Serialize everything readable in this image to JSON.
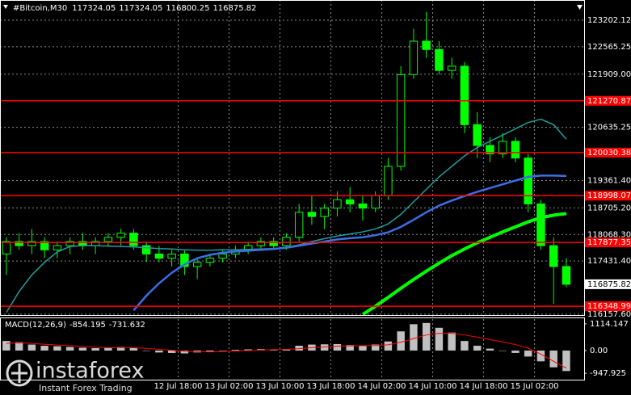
{
  "chart_data": [
    {
      "type": "candlestick",
      "title": "#Bitcoin,M30",
      "quote": [
        117324.05,
        117324.05,
        116800.25,
        116875.82
      ],
      "x": [
        0,
        1,
        2,
        3,
        4,
        5,
        6,
        7,
        8,
        9,
        10,
        11,
        12,
        13,
        14,
        15,
        16,
        17,
        18,
        19,
        20,
        21,
        22,
        23,
        24,
        25,
        26,
        27,
        28,
        29,
        30,
        31,
        32,
        33,
        34,
        35,
        36,
        37,
        38,
        39,
        40,
        41,
        42,
        43,
        44
      ],
      "open": [
        117600,
        117900,
        117800,
        117900,
        117700,
        117800,
        117900,
        117800,
        117900,
        118000,
        118100,
        117800,
        117600,
        117500,
        117600,
        117300,
        117400,
        117500,
        117600,
        117700,
        117800,
        117900,
        117800,
        118000,
        118600,
        118500,
        118700,
        118900,
        118800,
        118700,
        119000,
        119700,
        121900,
        122700,
        122500,
        122000,
        122100,
        120700,
        120200,
        120000,
        120300,
        119900,
        118800,
        117800,
        117300
      ],
      "high": [
        118000,
        118100,
        118200,
        118000,
        117900,
        118000,
        118100,
        118000,
        118100,
        118200,
        118200,
        117900,
        117800,
        117700,
        117700,
        117500,
        117600,
        117700,
        117800,
        117900,
        118000,
        118000,
        118100,
        118800,
        119000,
        118800,
        119100,
        119200,
        119000,
        119100,
        119900,
        122100,
        123000,
        123400,
        122700,
        122300,
        122200,
        121000,
        120400,
        120500,
        120400,
        120000,
        118900,
        118000,
        117500
      ],
      "low": [
        117100,
        117700,
        117600,
        117500,
        117500,
        117600,
        117700,
        117600,
        117800,
        117800,
        117700,
        117400,
        117400,
        117300,
        117100,
        117000,
        117300,
        117400,
        117500,
        117600,
        117700,
        117700,
        117700,
        117900,
        118300,
        118200,
        118500,
        118600,
        118400,
        118600,
        118900,
        119600,
        121800,
        122300,
        121900,
        121800,
        120500,
        119900,
        119800,
        119900,
        119800,
        118600,
        117700,
        116400,
        116800
      ],
      "close": [
        117900,
        117800,
        117900,
        117700,
        117800,
        117900,
        117800,
        117900,
        118000,
        118100,
        117800,
        117600,
        117500,
        117600,
        117300,
        117400,
        117500,
        117600,
        117700,
        117800,
        117900,
        117800,
        118000,
        118600,
        118500,
        118700,
        118900,
        118800,
        118700,
        119000,
        119700,
        121900,
        122700,
        122500,
        122000,
        122100,
        120700,
        120200,
        120000,
        120300,
        119900,
        118800,
        117800,
        117300,
        116875.82
      ],
      "color": "#00ff00",
      "lines": [
        {
          "color": "#1f9e9e",
          "width": 1.5,
          "values": [
            116200,
            116700,
            117100,
            117400,
            117650,
            117780,
            117800,
            117800,
            117790,
            117780,
            117770,
            117750,
            117730,
            117720,
            117700,
            117690,
            117690,
            117700,
            117700,
            117710,
            117720,
            117730,
            117760,
            117820,
            117900,
            117970,
            118030,
            118080,
            118130,
            118200,
            118320,
            118550,
            118850,
            119150,
            119450,
            119700,
            119950,
            120150,
            120300,
            120450,
            120600,
            120750,
            120830,
            120700,
            120350
          ]
        },
        {
          "color": "#3b6fe6",
          "width": 2.5,
          "values": [
            null,
            null,
            null,
            null,
            null,
            null,
            null,
            null,
            null,
            null,
            116250,
            116600,
            116900,
            117150,
            117350,
            117500,
            117580,
            117630,
            117660,
            117680,
            117700,
            117720,
            117750,
            117800,
            117850,
            117900,
            117950,
            117980,
            118000,
            118050,
            118120,
            118250,
            118420,
            118600,
            118760,
            118880,
            118990,
            119090,
            119180,
            119270,
            119360,
            119450,
            119480,
            119480,
            119470
          ]
        },
        {
          "color": "#00ff00",
          "width": 4,
          "values": [
            null,
            null,
            null,
            null,
            null,
            null,
            null,
            null,
            null,
            null,
            null,
            null,
            null,
            null,
            null,
            null,
            null,
            null,
            null,
            null,
            null,
            null,
            null,
            null,
            null,
            null,
            null,
            null,
            116150,
            116350,
            116560,
            116780,
            116990,
            117190,
            117380,
            117560,
            117720,
            117870,
            118000,
            118130,
            118250,
            118370,
            118470,
            118530,
            118570
          ]
        }
      ],
      "levels": [
        121270.87,
        120030.38,
        118998.07,
        117877.35,
        116348.99
      ],
      "level_color": "#ff0000",
      "current_price": 116875.82,
      "xlim": [
        -0.5,
        45.4
      ],
      "xticks": [
        {
          "value": 13.5,
          "label": "12 Jul 18:00"
        },
        {
          "value": 17.5,
          "label": "13 Jul 02:00"
        },
        {
          "value": 21.5,
          "label": "13 Jul 10:00"
        },
        {
          "value": 25.5,
          "label": "13 Jul 18:00"
        },
        {
          "value": 29.5,
          "label": "14 Jul 02:00"
        },
        {
          "value": 33.5,
          "label": "14 Jul 10:00"
        },
        {
          "value": 37.5,
          "label": "14 Jul 18:00"
        },
        {
          "value": 41.5,
          "label": "15 Jul 02:00"
        }
      ],
      "ylim": [
        116138,
        123686
      ],
      "yticks": [
        {
          "value": 116157.6,
          "label": "116157.60"
        },
        {
          "value": 117431.4,
          "label": "117431.40"
        },
        {
          "value": 118068.3,
          "label": "118068.30"
        },
        {
          "value": 118705.2,
          "label": "118705.20"
        },
        {
          "value": 119361.4,
          "label": "119361.40"
        },
        120635.25,
        {
          "value": 121909,
          "label": "121909.00"
        },
        122565.25,
        123202.12
      ],
      "grid": true
    },
    {
      "type": "macd",
      "title": "MACD(12,26,9)",
      "macd_value": -854.195,
      "signal_value": -731.632,
      "x": [
        0,
        1,
        2,
        3,
        4,
        5,
        6,
        7,
        8,
        9,
        10,
        11,
        12,
        13,
        14,
        15,
        16,
        17,
        18,
        19,
        20,
        21,
        22,
        23,
        24,
        25,
        26,
        27,
        28,
        29,
        30,
        31,
        32,
        33,
        34,
        35,
        36,
        37,
        38,
        39,
        40,
        41,
        42,
        43,
        44
      ],
      "values": [
        400,
        350,
        250,
        200,
        180,
        150,
        120,
        100,
        110,
        150,
        100,
        0,
        -80,
        -100,
        -120,
        -80,
        -40,
        0,
        30,
        50,
        60,
        50,
        60,
        200,
        250,
        260,
        270,
        230,
        200,
        250,
        380,
        800,
        1100,
        1150,
        950,
        750,
        400,
        200,
        80,
        0,
        -100,
        -250,
        -450,
        -700,
        -854.195
      ],
      "color": "#c0c0c0",
      "signal": [
        300,
        320,
        300,
        260,
        230,
        200,
        170,
        140,
        120,
        120,
        115,
        90,
        50,
        10,
        -30,
        -50,
        -55,
        -45,
        -25,
        0,
        20,
        35,
        45,
        80,
        120,
        150,
        180,
        195,
        200,
        210,
        240,
        350,
        500,
        650,
        720,
        720,
        650,
        560,
        460,
        360,
        250,
        100,
        -150,
        -450,
        -731.632
      ],
      "signal_color": "#ff0000",
      "xlim": [
        -0.5,
        45.4
      ],
      "ylim": [
        -1214,
        1347
      ],
      "yticks": [
        1114.147,
        {
          "value": 0,
          "label": "0.00"
        },
        -947.925
      ]
    },
    {
      "brand": "instaforex",
      "tagline": "Instant Forex Trading"
    }
  ]
}
